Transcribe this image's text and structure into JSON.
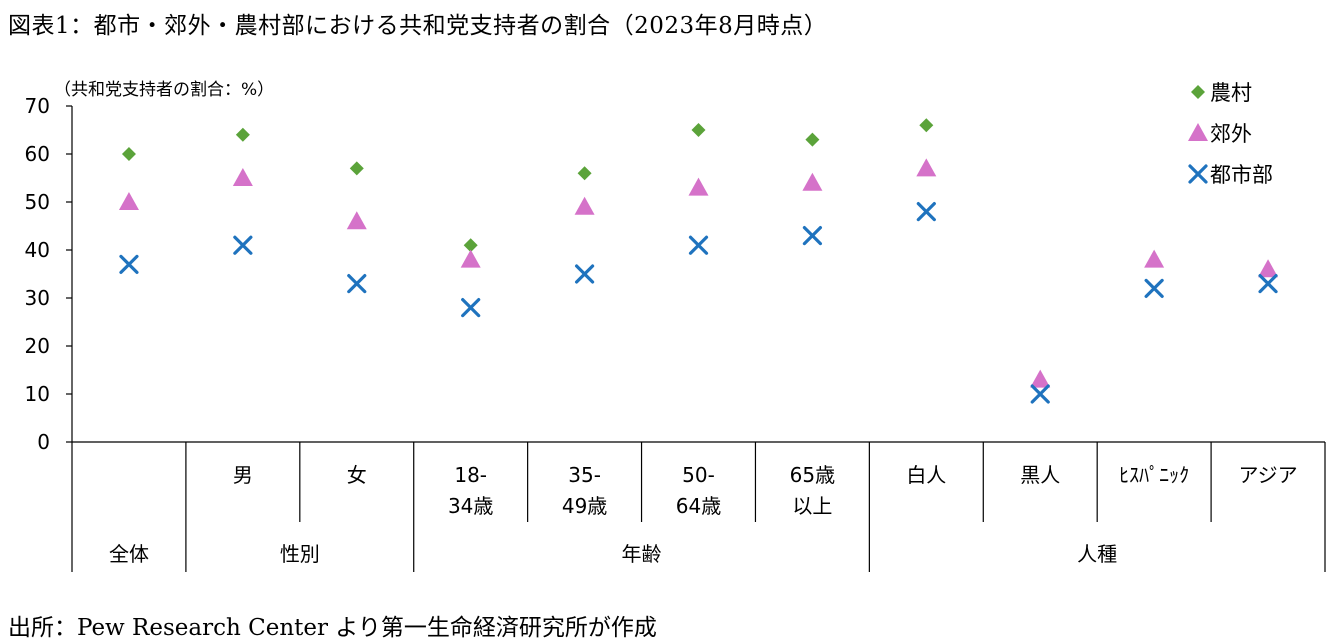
{
  "title": "図表1：都市・郊外・農村部における共和党支持者の割合（2023年8月時点）",
  "source": "出所：Pew Research Center より第一生命経済研究所が作成",
  "chart_data": {
    "type": "scatter",
    "ylabel": "（共和党支持者の割合：%）",
    "ylim": [
      0,
      70
    ],
    "yticks": [
      0,
      10,
      20,
      30,
      40,
      50,
      60,
      70
    ],
    "grid": false,
    "legend_position": "top-right",
    "categories": [
      [
        "",
        ""
      ],
      [
        "男",
        ""
      ],
      [
        "女",
        ""
      ],
      [
        "18-",
        "34歳"
      ],
      [
        "35-",
        "49歳"
      ],
      [
        "50-",
        "64歳"
      ],
      [
        "65歳",
        "以上"
      ],
      [
        "白人",
        ""
      ],
      [
        "黒人",
        ""
      ],
      [
        "ﾋｽﾊﾟﾆｯｸ",
        ""
      ],
      [
        "アジア",
        ""
      ]
    ],
    "groups": [
      {
        "label": "全体",
        "span": [
          0,
          0
        ]
      },
      {
        "label": "性別",
        "span": [
          1,
          2
        ]
      },
      {
        "label": "年齢",
        "span": [
          3,
          6
        ]
      },
      {
        "label": "人種",
        "span": [
          7,
          10
        ]
      }
    ],
    "series": [
      {
        "name": "農村",
        "marker": "diamond",
        "color": "#5BA33A",
        "values": [
          60,
          64,
          57,
          41,
          56,
          65,
          63,
          66,
          null,
          null,
          null
        ]
      },
      {
        "name": "郊外",
        "marker": "triangle",
        "color": "#D572C9",
        "values": [
          50,
          55,
          46,
          38,
          49,
          53,
          54,
          57,
          13,
          38,
          36
        ]
      },
      {
        "name": "都市部",
        "marker": "x",
        "color": "#1F73BE",
        "values": [
          37,
          41,
          33,
          28,
          35,
          41,
          43,
          48,
          10,
          32,
          33
        ]
      }
    ]
  }
}
